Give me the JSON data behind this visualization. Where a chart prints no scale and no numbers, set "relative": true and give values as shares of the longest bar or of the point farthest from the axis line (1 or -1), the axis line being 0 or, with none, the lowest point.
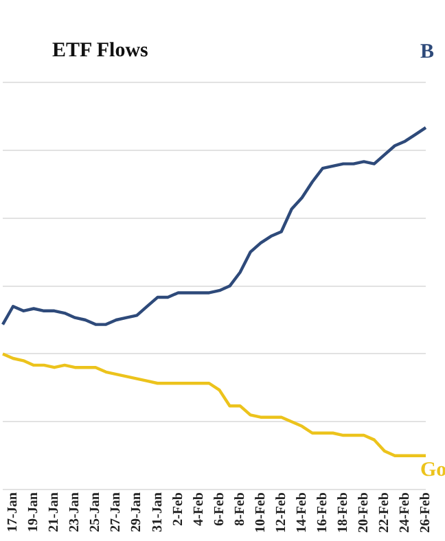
{
  "chart_data": {
    "type": "line",
    "title": "ETF Flows",
    "relative": true,
    "grid": "y",
    "legend": false,
    "marker": "none",
    "line_style": "solid",
    "categories": [
      null,
      "17-Jan",
      null,
      "19-Jan",
      null,
      "21-Jan",
      null,
      "23-Jan",
      null,
      "25-Jan",
      null,
      "27-Jan",
      null,
      "29-Jan",
      null,
      "31-Jan",
      null,
      "2-Feb",
      null,
      "4-Feb",
      null,
      "6-Feb",
      null,
      "8-Feb",
      null,
      "10-Feb",
      null,
      "12-Feb",
      null,
      "14-Feb",
      null,
      "16-Feb",
      null,
      "18-Feb",
      null,
      "20-Feb",
      null,
      "22-Feb",
      null,
      "24-Feb",
      null,
      "26-Feb"
    ],
    "series": [
      {
        "name": "B",
        "color": "#2e4a7a",
        "values": [
          0.13,
          0.21,
          0.19,
          0.2,
          0.19,
          0.19,
          0.18,
          0.16,
          0.15,
          0.13,
          0.13,
          0.15,
          0.16,
          0.17,
          0.21,
          0.25,
          0.25,
          0.27,
          0.27,
          0.27,
          0.27,
          0.28,
          0.3,
          0.36,
          0.45,
          0.49,
          0.52,
          0.54,
          0.64,
          0.69,
          0.76,
          0.82,
          0.83,
          0.84,
          0.84,
          0.85,
          0.84,
          0.88,
          0.92,
          0.94,
          0.97,
          1
        ]
      },
      {
        "name": "Go",
        "color": "#ecc31c",
        "values": [
          0,
          -0.02,
          -0.03,
          -0.05,
          -0.05,
          -0.06,
          -0.05,
          -0.06,
          -0.06,
          -0.06,
          -0.08,
          -0.09,
          -0.1,
          -0.11,
          -0.12,
          -0.13,
          -0.13,
          -0.13,
          -0.13,
          -0.13,
          -0.13,
          -0.16,
          -0.23,
          -0.23,
          -0.27,
          -0.28,
          -0.28,
          -0.28,
          -0.3,
          -0.32,
          -0.35,
          -0.35,
          -0.35,
          -0.36,
          -0.36,
          -0.36,
          -0.38,
          -0.43,
          -0.45,
          -0.45,
          -0.45,
          -0.45
        ]
      }
    ]
  }
}
